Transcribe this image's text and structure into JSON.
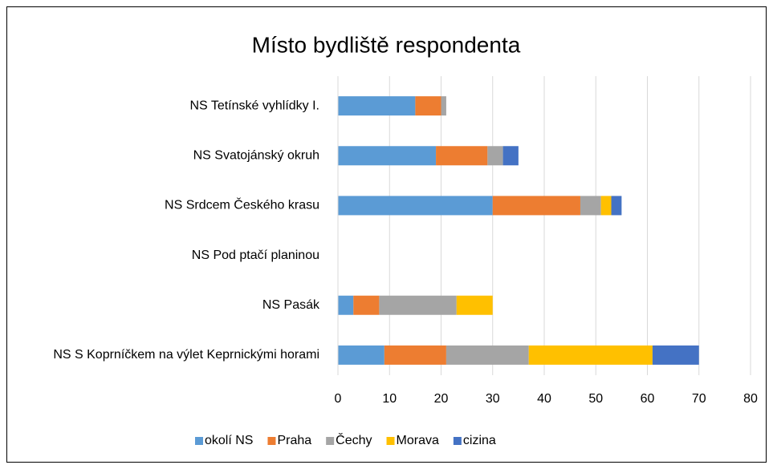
{
  "chart_data": {
    "type": "stacked_bar_horizontal",
    "title": "Místo bydliště respondenta",
    "categories": [
      "NS Tetínské vyhlídky I.",
      "NS Svatojánský okruh",
      "NS Srdcem Českého krasu",
      "NS Pod ptačí planinou",
      "NS Pasák",
      "NS S Koprníčkem na výlet Keprnickými horami"
    ],
    "series": [
      {
        "name": "okolí NS",
        "color": "#5b9bd5",
        "values": [
          15,
          19,
          30,
          0,
          3,
          9
        ]
      },
      {
        "name": "Praha",
        "color": "#ed7d31",
        "values": [
          5,
          10,
          17,
          0,
          5,
          12
        ]
      },
      {
        "name": "Čechy",
        "color": "#a5a5a5",
        "values": [
          1,
          3,
          4,
          0,
          15,
          16
        ]
      },
      {
        "name": "Morava",
        "color": "#ffc000",
        "values": [
          0,
          0,
          2,
          0,
          7,
          24
        ]
      },
      {
        "name": "cizina",
        "color": "#4472c4",
        "values": [
          0,
          3,
          2,
          0,
          0,
          9
        ]
      }
    ],
    "xlim": [
      0,
      80
    ],
    "xticks": [
      0,
      10,
      20,
      30,
      40,
      50,
      60,
      70,
      80
    ],
    "grid": true,
    "legend": "bottom"
  }
}
